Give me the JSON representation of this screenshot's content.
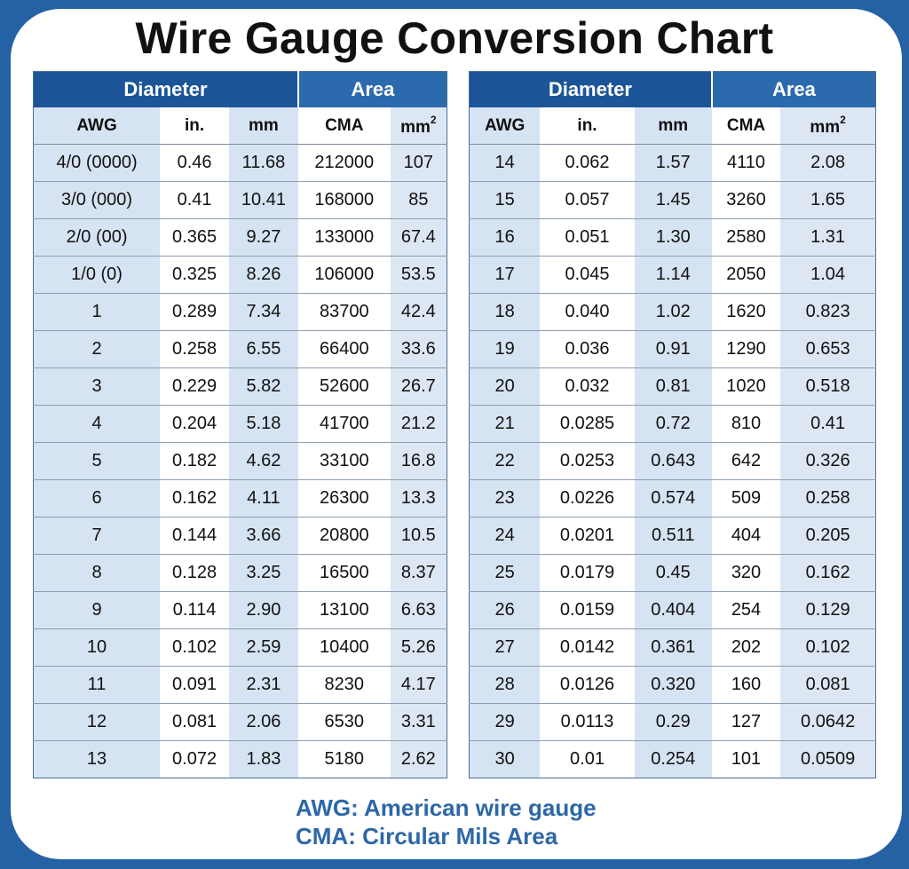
{
  "title": "Wire Gauge Conversion Chart",
  "headers": {
    "group_diameter": "Diameter",
    "group_area": "Area",
    "awg": "AWG",
    "in": "in.",
    "mm": "mm",
    "cma": "CMA",
    "mm2_base": "mm",
    "mm2_sup": "2"
  },
  "left_table": [
    [
      "4/0 (0000)",
      "0.46",
      "11.68",
      "212000",
      "107"
    ],
    [
      "3/0 (000)",
      "0.41",
      "10.41",
      "168000",
      "85"
    ],
    [
      "2/0 (00)",
      "0.365",
      "9.27",
      "133000",
      "67.4"
    ],
    [
      "1/0 (0)",
      "0.325",
      "8.26",
      "106000",
      "53.5"
    ],
    [
      "1",
      "0.289",
      "7.34",
      "83700",
      "42.4"
    ],
    [
      "2",
      "0.258",
      "6.55",
      "66400",
      "33.6"
    ],
    [
      "3",
      "0.229",
      "5.82",
      "52600",
      "26.7"
    ],
    [
      "4",
      "0.204",
      "5.18",
      "41700",
      "21.2"
    ],
    [
      "5",
      "0.182",
      "4.62",
      "33100",
      "16.8"
    ],
    [
      "6",
      "0.162",
      "4.11",
      "26300",
      "13.3"
    ],
    [
      "7",
      "0.144",
      "3.66",
      "20800",
      "10.5"
    ],
    [
      "8",
      "0.128",
      "3.25",
      "16500",
      "8.37"
    ],
    [
      "9",
      "0.114",
      "2.90",
      "13100",
      "6.63"
    ],
    [
      "10",
      "0.102",
      "2.59",
      "10400",
      "5.26"
    ],
    [
      "11",
      "0.091",
      "2.31",
      "8230",
      "4.17"
    ],
    [
      "12",
      "0.081",
      "2.06",
      "6530",
      "3.31"
    ],
    [
      "13",
      "0.072",
      "1.83",
      "5180",
      "2.62"
    ]
  ],
  "right_table": [
    [
      "14",
      "0.062",
      "1.57",
      "4110",
      "2.08"
    ],
    [
      "15",
      "0.057",
      "1.45",
      "3260",
      "1.65"
    ],
    [
      "16",
      "0.051",
      "1.30",
      "2580",
      "1.31"
    ],
    [
      "17",
      "0.045",
      "1.14",
      "2050",
      "1.04"
    ],
    [
      "18",
      "0.040",
      "1.02",
      "1620",
      "0.823"
    ],
    [
      "19",
      "0.036",
      "0.91",
      "1290",
      "0.653"
    ],
    [
      "20",
      "0.032",
      "0.81",
      "1020",
      "0.518"
    ],
    [
      "21",
      "0.0285",
      "0.72",
      "810",
      "0.41"
    ],
    [
      "22",
      "0.0253",
      "0.643",
      "642",
      "0.326"
    ],
    [
      "23",
      "0.0226",
      "0.574",
      "509",
      "0.258"
    ],
    [
      "24",
      "0.0201",
      "0.511",
      "404",
      "0.205"
    ],
    [
      "25",
      "0.0179",
      "0.45",
      "320",
      "0.162"
    ],
    [
      "26",
      "0.0159",
      "0.404",
      "254",
      "0.129"
    ],
    [
      "27",
      "0.0142",
      "0.361",
      "202",
      "0.102"
    ],
    [
      "28",
      "0.0126",
      "0.320",
      "160",
      "0.081"
    ],
    [
      "29",
      "0.0113",
      "0.29",
      "127",
      "0.0642"
    ],
    [
      "30",
      "0.01",
      "0.254",
      "101",
      "0.0509"
    ]
  ],
  "legend": {
    "awg": "AWG: American wire gauge",
    "cma": "CMA: Circular Mils Area"
  },
  "colors": {
    "frame_blue": "#2462a4",
    "header_diameter": "#1c5597",
    "header_area": "#2b6aad",
    "shaded_column": "#d6e3f2",
    "legend_text": "#2d67a8"
  },
  "chart_data": {
    "type": "table",
    "title": "Wire Gauge Conversion Chart",
    "column_groups": [
      {
        "name": "Diameter",
        "columns": [
          "AWG",
          "in.",
          "mm"
        ]
      },
      {
        "name": "Area",
        "columns": [
          "CMA",
          "mm²"
        ]
      }
    ],
    "columns": [
      "AWG",
      "in.",
      "mm",
      "CMA",
      "mm²"
    ],
    "rows": [
      [
        "4/0 (0000)",
        0.46,
        11.68,
        212000,
        107
      ],
      [
        "3/0 (000)",
        0.41,
        10.41,
        168000,
        85
      ],
      [
        "2/0 (00)",
        0.365,
        9.27,
        133000,
        67.4
      ],
      [
        "1/0 (0)",
        0.325,
        8.26,
        106000,
        53.5
      ],
      [
        "1",
        0.289,
        7.34,
        83700,
        42.4
      ],
      [
        "2",
        0.258,
        6.55,
        66400,
        33.6
      ],
      [
        "3",
        0.229,
        5.82,
        52600,
        26.7
      ],
      [
        "4",
        0.204,
        5.18,
        41700,
        21.2
      ],
      [
        "5",
        0.182,
        4.62,
        33100,
        16.8
      ],
      [
        "6",
        0.162,
        4.11,
        26300,
        13.3
      ],
      [
        "7",
        0.144,
        3.66,
        20800,
        10.5
      ],
      [
        "8",
        0.128,
        3.25,
        16500,
        8.37
      ],
      [
        "9",
        0.114,
        2.9,
        13100,
        6.63
      ],
      [
        "10",
        0.102,
        2.59,
        10400,
        5.26
      ],
      [
        "11",
        0.091,
        2.31,
        8230,
        4.17
      ],
      [
        "12",
        0.081,
        2.06,
        6530,
        3.31
      ],
      [
        "13",
        0.072,
        1.83,
        5180,
        2.62
      ],
      [
        "14",
        0.062,
        1.57,
        4110,
        2.08
      ],
      [
        "15",
        0.057,
        1.45,
        3260,
        1.65
      ],
      [
        "16",
        0.051,
        1.3,
        2580,
        1.31
      ],
      [
        "17",
        0.045,
        1.14,
        2050,
        1.04
      ],
      [
        "18",
        0.04,
        1.02,
        1620,
        0.823
      ],
      [
        "19",
        0.036,
        0.91,
        1290,
        0.653
      ],
      [
        "20",
        0.032,
        0.81,
        1020,
        0.518
      ],
      [
        "21",
        0.0285,
        0.72,
        810,
        0.41
      ],
      [
        "22",
        0.0253,
        0.643,
        642,
        0.326
      ],
      [
        "23",
        0.0226,
        0.574,
        509,
        0.258
      ],
      [
        "24",
        0.0201,
        0.511,
        404,
        0.205
      ],
      [
        "25",
        0.0179,
        0.45,
        320,
        0.162
      ],
      [
        "26",
        0.0159,
        0.404,
        254,
        0.129
      ],
      [
        "27",
        0.0142,
        0.361,
        202,
        0.102
      ],
      [
        "28",
        0.0126,
        0.32,
        160,
        0.081
      ],
      [
        "29",
        0.0113,
        0.29,
        127,
        0.0642
      ],
      [
        "30",
        0.01,
        0.254,
        101,
        0.0509
      ]
    ],
    "annotations": [
      "AWG: American wire gauge",
      "CMA: Circular Mils Area"
    ]
  }
}
